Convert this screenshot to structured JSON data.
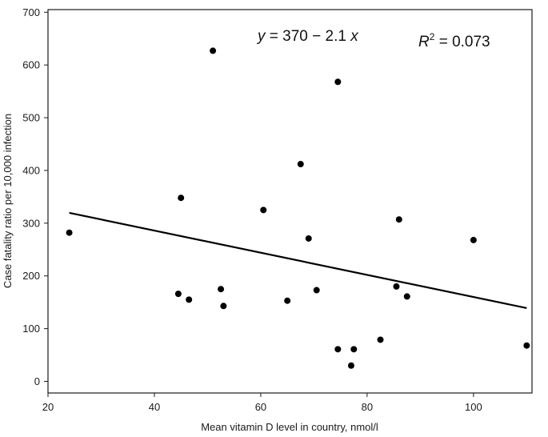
{
  "chart_data": {
    "type": "scatter",
    "title": "",
    "xlabel": "Mean vitamin D level in country, nmol/l",
    "ylabel": "Case fatality ratio per 10,000 infection",
    "xlim": [
      20,
      111
    ],
    "ylim": [
      -22,
      705
    ],
    "xticks": [
      20,
      40,
      60,
      80,
      100
    ],
    "yticks": [
      0,
      100,
      200,
      300,
      400,
      500,
      600,
      700
    ],
    "grid": false,
    "points": [
      {
        "x": 24,
        "y": 282
      },
      {
        "x": 44.5,
        "y": 166
      },
      {
        "x": 45,
        "y": 348
      },
      {
        "x": 46.5,
        "y": 155
      },
      {
        "x": 51,
        "y": 627
      },
      {
        "x": 52.5,
        "y": 175
      },
      {
        "x": 53,
        "y": 143
      },
      {
        "x": 60.5,
        "y": 325
      },
      {
        "x": 65,
        "y": 153
      },
      {
        "x": 67.5,
        "y": 412
      },
      {
        "x": 69,
        "y": 271
      },
      {
        "x": 70.5,
        "y": 173
      },
      {
        "x": 74.5,
        "y": 61
      },
      {
        "x": 74.5,
        "y": 568
      },
      {
        "x": 77,
        "y": 30
      },
      {
        "x": 77.5,
        "y": 61
      },
      {
        "x": 82.5,
        "y": 79
      },
      {
        "x": 85.5,
        "y": 180
      },
      {
        "x": 86,
        "y": 307
      },
      {
        "x": 87.5,
        "y": 161
      },
      {
        "x": 100,
        "y": 268
      },
      {
        "x": 110,
        "y": 68
      }
    ],
    "fit_line": {
      "intercept": 370,
      "slope": -2.1,
      "x_range": [
        24,
        110
      ]
    },
    "annotations": {
      "equation_y": "y",
      "equation_body": " = 370 − 2.1 ",
      "equation_x": "x",
      "r2_label": "R",
      "r2_sup": "2",
      "r2_value": " = 0.073"
    }
  },
  "colors": {
    "points": "#000000",
    "line": "#000000",
    "axes": "#1a1a1a"
  }
}
